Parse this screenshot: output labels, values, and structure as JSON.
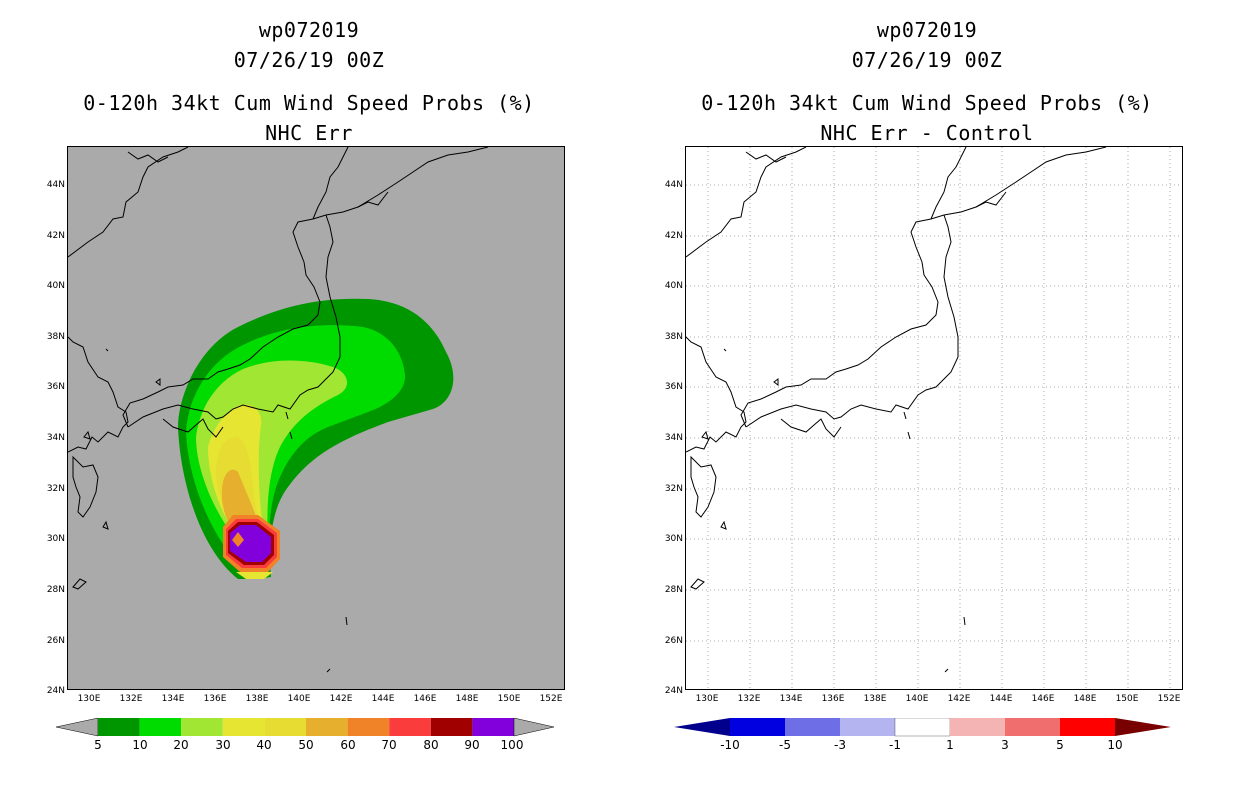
{
  "panels": [
    {
      "id": "left",
      "title_lines": [
        "wp072019",
        "07/26/19 00Z",
        "0-120h 34kt Cum Wind Speed Probs (%)",
        "NHC Err"
      ],
      "background": "#aaaaaa",
      "colorbar": {
        "labels": [
          "5",
          "10",
          "20",
          "30",
          "40",
          "50",
          "60",
          "70",
          "80",
          "90",
          "100"
        ],
        "colors": [
          "#009600",
          "#00dc00",
          "#a0e632",
          "#e6e632",
          "#e6dc32",
          "#e6af2d",
          "#f08228",
          "#fa3c3c",
          "#a00000",
          "#8200dc"
        ],
        "under_color": "#aaaaaa",
        "over_color": "#aaaaaa"
      }
    },
    {
      "id": "right",
      "title_lines": [
        "wp072019",
        "07/26/19 00Z",
        "0-120h 34kt Cum Wind Speed Probs (%)",
        "NHC Err - Control"
      ],
      "background": "#ffffff",
      "colorbar": {
        "labels": [
          "-10",
          "-5",
          "-3",
          "-1",
          "1",
          "3",
          "5",
          "10"
        ],
        "colors": [
          "#0000e0",
          "#6e6ee6",
          "#b4b4f0",
          "#ffffff",
          "#f5b4b4",
          "#f06e6e",
          "#ff0000"
        ],
        "under_color": "#00008c",
        "over_color": "#780000"
      }
    }
  ],
  "map": {
    "lat_labels": [
      "44N",
      "42N",
      "40N",
      "38N",
      "36N",
      "34N",
      "32N",
      "30N",
      "28N",
      "26N",
      "24N"
    ],
    "lat_values": [
      44,
      42,
      40,
      38,
      36,
      34,
      32,
      30,
      28,
      26,
      24
    ],
    "lon_labels": [
      "130E",
      "132E",
      "134E",
      "136E",
      "138E",
      "140E",
      "142E",
      "144E",
      "146E",
      "148E",
      "150E",
      "152E"
    ],
    "lon_values": [
      130,
      132,
      134,
      136,
      138,
      140,
      142,
      144,
      146,
      148,
      150,
      152
    ],
    "lon_range": [
      128.8,
      152.6
    ],
    "lat_range": [
      24,
      45.4
    ],
    "storm_center": {
      "lon": 137.1,
      "lat": 30.0
    }
  }
}
